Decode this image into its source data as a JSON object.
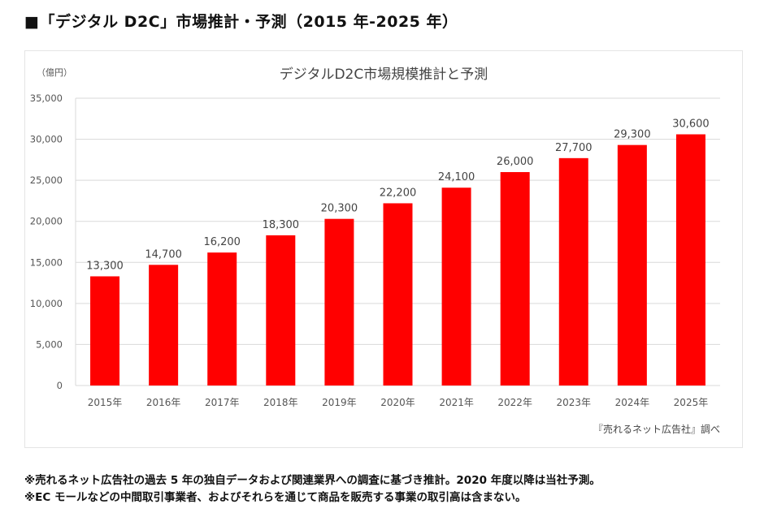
{
  "heading": "■「デジタル D2C」市場推計・予測（2015 年-2025 年）",
  "chart_data": {
    "type": "bar",
    "title": "デジタルD2C市場規模推計と予測",
    "ylabel": "（億円）",
    "categories": [
      "2015年",
      "2016年",
      "2017年",
      "2018年",
      "2019年",
      "2020年",
      "2021年",
      "2022年",
      "2023年",
      "2024年",
      "2025年"
    ],
    "values": [
      13300,
      14700,
      16200,
      18300,
      20300,
      22200,
      24100,
      26000,
      27700,
      29300,
      30600
    ],
    "data_labels": [
      "13,300",
      "14,700",
      "16,200",
      "18,300",
      "20,300",
      "22,200",
      "24,100",
      "26,000",
      "27,700",
      "29,300",
      "30,600"
    ],
    "ylim": [
      0,
      35000
    ],
    "yticks": [
      "0",
      "5,000",
      "10,000",
      "15,000",
      "20,000",
      "25,000",
      "30,000",
      "35,000"
    ],
    "grid": true,
    "bar_color": "#ff0000",
    "source": "『売れるネット広告社』調べ"
  },
  "notes": [
    "※売れるネット広告社の過去 5 年の独自データおよび関連業界への調査に基づき推計。2020 年度以降は当社予測。",
    "※EC モールなどの中間取引事業者、およびそれらを通じて商品を販売する事業の取引高は含まない。"
  ]
}
